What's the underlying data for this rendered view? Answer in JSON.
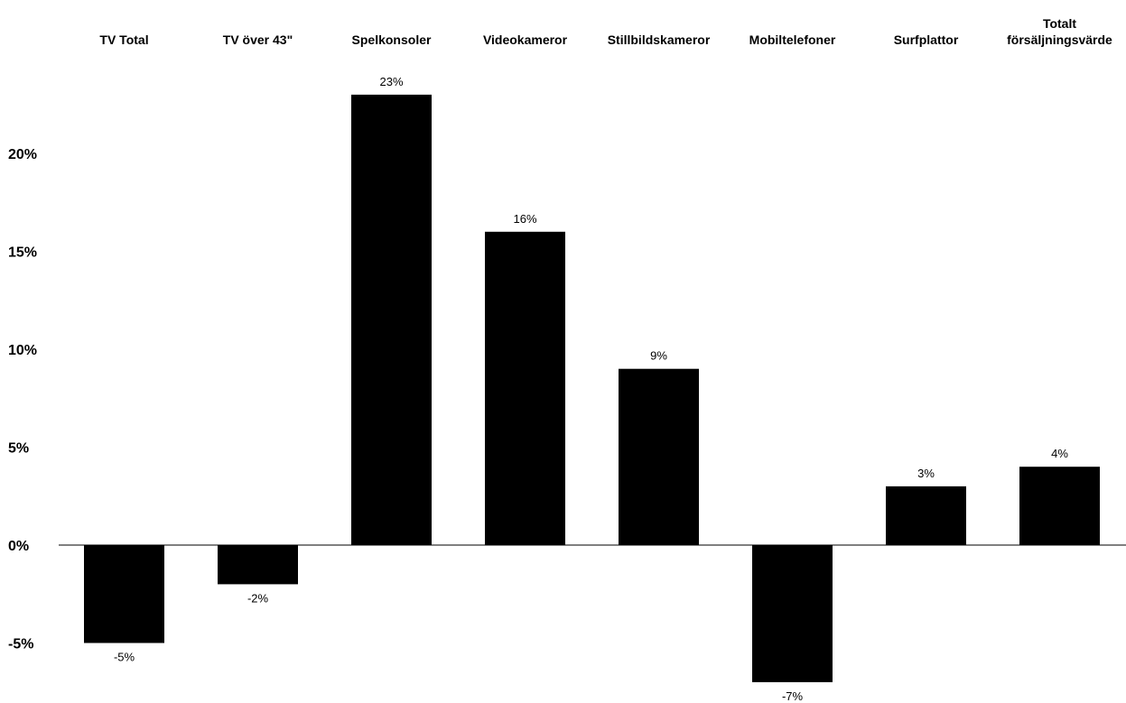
{
  "chart_data": {
    "type": "bar",
    "title": "",
    "xlabel": "",
    "ylabel": "",
    "categories": [
      [
        "TV Total"
      ],
      [
        "TV över 43\""
      ],
      [
        "Spelkonsoler"
      ],
      [
        "Videokameror"
      ],
      [
        "Stillbildskameror"
      ],
      [
        "Mobiltelefoner"
      ],
      [
        "Surfplattor"
      ],
      [
        "Totalt",
        "försäljningsvärde"
      ]
    ],
    "values": [
      -5,
      -2,
      23,
      16,
      9,
      -7,
      3,
      4
    ],
    "data_labels": [
      "-5%",
      "-2%",
      "23%",
      "16%",
      "9%",
      "-7%",
      "3%",
      "4%"
    ],
    "ylim": [
      -7,
      23
    ],
    "yticks": [
      20,
      15,
      10,
      5,
      0,
      -5
    ],
    "ytick_labels": [
      "20%",
      "15%",
      "10%",
      "5%",
      "0%",
      "-5%"
    ],
    "category_label_position": "top",
    "grid": false,
    "legend": "none",
    "bar_color": "#000000"
  }
}
